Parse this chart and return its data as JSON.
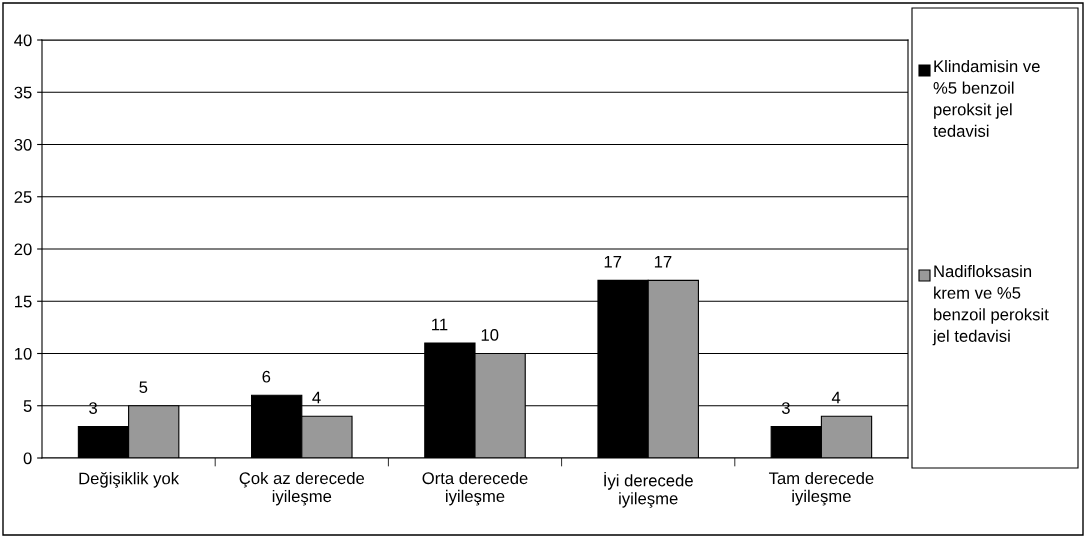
{
  "chart_data": {
    "type": "bar",
    "categories": [
      "Değişiklik yok",
      "Çok az derecede\niyileşme",
      "Orta derecede\niyileşme",
      "İyi derecede\niyileşme",
      "Tam derecede\niyileşme"
    ],
    "series": [
      {
        "name": "Klindamisin ve %5 benzoil peroksit jel tedavisi",
        "color": "#000000",
        "values": [
          3,
          6,
          11,
          17,
          3
        ]
      },
      {
        "name": "Nadifloksasin krem ve %5 benzoil peroksit jel tedavisi",
        "color": "#999999",
        "values": [
          5,
          4,
          10,
          17,
          4
        ]
      }
    ],
    "ylim": [
      0,
      40
    ],
    "yticks": [
      0,
      5,
      10,
      15,
      20,
      25,
      30,
      35,
      40
    ],
    "grid": "y",
    "legend": "right",
    "data_labels": true
  }
}
